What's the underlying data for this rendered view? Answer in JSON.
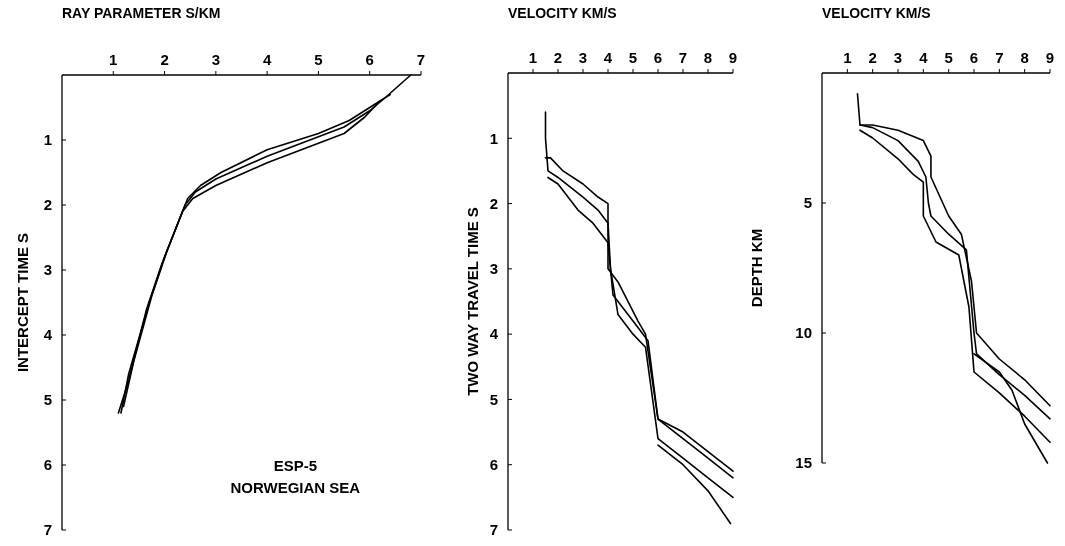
{
  "chart_data": [
    {
      "type": "line",
      "xlabel": "RAY PARAMETER S/KM",
      "ylabel": "INTERCEPT TIME S",
      "xlim": [
        0,
        7
      ],
      "ylim": [
        7,
        0
      ],
      "xticks": [
        1,
        2,
        3,
        4,
        5,
        6,
        7
      ],
      "yticks": [
        1,
        2,
        3,
        4,
        5,
        6,
        7
      ],
      "grid": false,
      "annotations": [
        "ESP-5",
        "NORWEGIAN SEA"
      ],
      "series": [
        {
          "color": "#000000",
          "x": [
            1.15,
            1.3,
            1.7,
            2.0,
            2.4,
            2.6,
            3.0,
            4.0,
            5.0,
            5.5,
            6.0,
            6.3,
            6.8
          ],
          "values": [
            5.2,
            4.6,
            3.5,
            2.8,
            2.0,
            1.8,
            1.6,
            1.25,
            0.95,
            0.8,
            0.55,
            0.35,
            0
          ]
        },
        {
          "color": "#000000",
          "x": [
            1.2,
            1.4,
            1.75,
            2.05,
            2.45,
            2.7,
            3.1,
            4.0,
            5.0,
            5.6,
            6.1,
            6.4
          ],
          "values": [
            5.1,
            4.4,
            3.4,
            2.7,
            1.9,
            1.7,
            1.5,
            1.15,
            0.9,
            0.7,
            0.45,
            0.3
          ]
        },
        {
          "color": "#000000",
          "x": [
            1.1,
            1.3,
            1.65,
            1.95,
            2.35,
            2.55,
            3.0,
            4.0,
            5.0,
            5.5,
            5.9,
            6.2
          ],
          "values": [
            5.2,
            4.7,
            3.6,
            2.9,
            2.1,
            1.9,
            1.7,
            1.35,
            1.05,
            0.9,
            0.65,
            0.4
          ]
        }
      ]
    },
    {
      "type": "line",
      "xlabel": "VELOCITY KM/S",
      "ylabel": "TWO WAY TRAVEL TIME S",
      "xlim": [
        0,
        9
      ],
      "ylim": [
        7,
        0
      ],
      "xticks": [
        1,
        2,
        3,
        4,
        5,
        6,
        7,
        8,
        9
      ],
      "yticks": [
        1,
        2,
        3,
        4,
        5,
        6,
        7
      ],
      "grid": false,
      "series": [
        {
          "color": "#000000",
          "x": [
            1.5,
            1.5,
            1.6,
            2.0,
            3.0,
            3.6,
            4.0,
            4.1,
            4.2,
            5.0,
            5.6,
            6.0,
            7.0,
            8.0,
            9.0
          ],
          "values": [
            0.6,
            1.0,
            1.5,
            1.6,
            1.9,
            2.1,
            2.3,
            3.0,
            3.4,
            3.8,
            4.1,
            5.3,
            5.6,
            5.9,
            6.2
          ]
        },
        {
          "color": "#000000",
          "x": [
            1.5,
            1.7,
            2.2,
            3.0,
            3.6,
            4.0,
            4.0,
            4.4,
            5.2,
            5.5,
            6.0,
            7.0,
            8.0,
            9.0
          ],
          "values": [
            1.3,
            1.3,
            1.5,
            1.7,
            1.9,
            2.0,
            3.0,
            3.2,
            3.8,
            4.0,
            5.3,
            5.5,
            5.8,
            6.1
          ]
        },
        {
          "color": "#000000",
          "x": [
            1.6,
            2.0,
            2.8,
            3.4,
            3.8,
            4.0,
            4.1,
            4.4,
            5.0,
            5.5,
            6.0,
            7.0,
            8.0,
            9.0
          ],
          "values": [
            1.6,
            1.7,
            2.1,
            2.3,
            2.5,
            2.6,
            3.0,
            3.7,
            4.0,
            4.2,
            5.6,
            5.9,
            6.2,
            6.5
          ]
        },
        {
          "color": "#000000",
          "x": [
            6.0,
            7.0,
            8.0,
            8.9
          ],
          "values": [
            5.7,
            6.0,
            6.4,
            6.9
          ]
        }
      ]
    },
    {
      "type": "line",
      "xlabel": "VELOCITY KM/S",
      "ylabel": "DEPTH KM",
      "xlim": [
        0,
        9
      ],
      "ylim": [
        15,
        0
      ],
      "xticks": [
        1,
        2,
        3,
        4,
        5,
        6,
        7,
        8,
        9
      ],
      "yticks": [
        5,
        10,
        15
      ],
      "grid": false,
      "series": [
        {
          "color": "#000000",
          "x": [
            1.4,
            1.5,
            2.0,
            3.0,
            3.8,
            4.1,
            4.2,
            4.3,
            5.0,
            5.7,
            6.0,
            6.1,
            7.0,
            8.0,
            9.0
          ],
          "values": [
            0.8,
            2.0,
            2.1,
            2.6,
            3.4,
            4.0,
            5.0,
            5.5,
            6.2,
            6.8,
            10.0,
            10.8,
            11.6,
            12.4,
            13.3
          ]
        },
        {
          "color": "#000000",
          "x": [
            1.5,
            2.0,
            3.0,
            4.0,
            4.3,
            4.3,
            5.0,
            5.5,
            5.9,
            6.1,
            7.0,
            8.0,
            9.0
          ],
          "values": [
            2.0,
            2.0,
            2.2,
            2.6,
            3.2,
            4.0,
            5.5,
            6.2,
            8.0,
            10.0,
            11.0,
            11.8,
            12.8
          ]
        },
        {
          "color": "#000000",
          "x": [
            1.5,
            2.0,
            3.0,
            3.6,
            4.0,
            4.0,
            4.5,
            5.4,
            5.8,
            6.0,
            7.0,
            8.0,
            9.0
          ],
          "values": [
            2.2,
            2.5,
            3.3,
            3.9,
            4.2,
            5.5,
            6.5,
            7.0,
            9.0,
            11.5,
            12.3,
            13.2,
            14.2
          ]
        },
        {
          "color": "#000000",
          "x": [
            6.0,
            7.0,
            7.5,
            8.0,
            8.9
          ],
          "values": [
            10.8,
            11.5,
            12.2,
            13.5,
            15.0
          ]
        }
      ]
    }
  ]
}
